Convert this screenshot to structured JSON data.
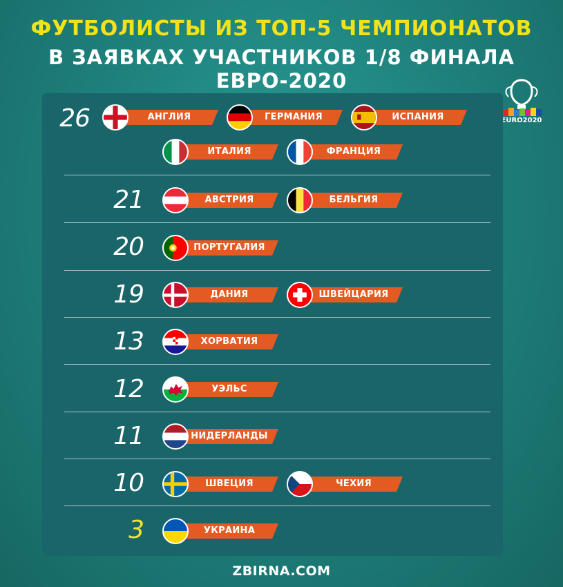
{
  "header": {
    "title_line1": "ФУТБОЛИСТЫ ИЗ ТОП-5 ЧЕМПИОНАТОВ",
    "title_line2": "В ЗАЯВКАХ УЧАСТНИКОВ 1/8 ФИНАЛА ЕВРО-2020",
    "logo_text": "EURO2020"
  },
  "groups": [
    {
      "count": "26",
      "countries": [
        "АНГЛИЯ",
        "ГЕРМАНИЯ",
        "ИСПАНИЯ",
        "ИТАЛИЯ",
        "ФРАНЦИЯ"
      ]
    },
    {
      "count": "21",
      "countries": [
        "АВСТРИЯ",
        "БЕЛЬГИЯ"
      ]
    },
    {
      "count": "20",
      "countries": [
        "ПОРТУГАЛИЯ"
      ]
    },
    {
      "count": "19",
      "countries": [
        "ДАНИЯ",
        "ШВЕЙЦАРИЯ"
      ]
    },
    {
      "count": "13",
      "countries": [
        "ХОРВАТИЯ"
      ]
    },
    {
      "count": "12",
      "countries": [
        "УЭЛЬС"
      ]
    },
    {
      "count": "11",
      "countries": [
        "НИДЕРЛАНДЫ"
      ]
    },
    {
      "count": "10",
      "countries": [
        "ШВЕЦИЯ",
        "ЧЕХИЯ"
      ]
    },
    {
      "count": "3",
      "countries": [
        "УКРАИНА"
      ]
    }
  ],
  "footer": {
    "text": "ZBIRNA.COM"
  },
  "colors": {
    "background": "#1f827d",
    "panel": "#1a6569",
    "label": "#e35b22",
    "title_accent": "#f2e21a",
    "highlight_number": "#f3e427"
  }
}
